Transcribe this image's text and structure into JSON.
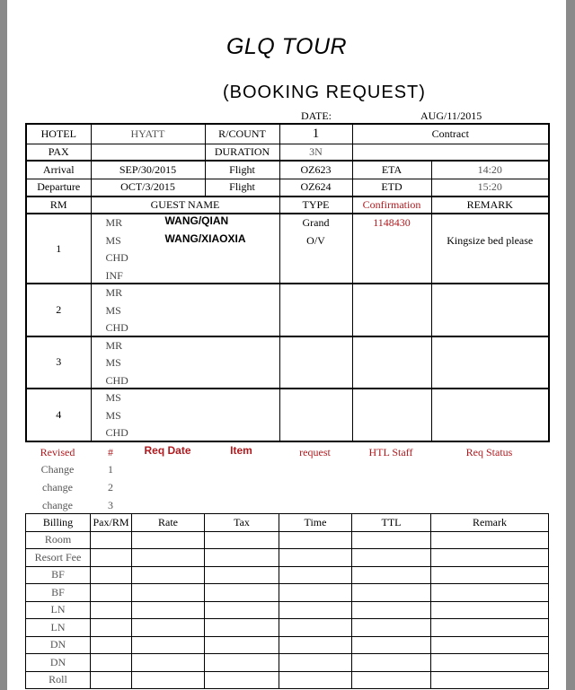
{
  "title": "GLQ TOUR",
  "subtitle": "(BOOKING REQUEST)",
  "date_label": "DATE:",
  "date_value": "AUG/11/2015",
  "info": {
    "hotel_label": "HOTEL",
    "hotel": "HYATT",
    "rcount_label": "R/COUNT",
    "rcount": "1",
    "contract": "Contract",
    "pax_label": "PAX",
    "pax": "",
    "duration_label": "DURATION",
    "duration": "3N",
    "arrival_label": "Arrival",
    "arrival": "SEP/30/2015",
    "flight_label": "Flight",
    "arr_flight": "OZ623",
    "eta_label": "ETA",
    "eta": "14:20",
    "departure_label": "Departure",
    "departure": "OCT/3/2015",
    "dep_flight": "OZ624",
    "etd_label": "ETD",
    "etd": "15:20"
  },
  "rooms_header": {
    "rm": "RM",
    "guest_name": "GUEST NAME",
    "type": "TYPE",
    "confirmation": "Confirmation",
    "remark": "REMARK"
  },
  "rooms": [
    {
      "rm": "1",
      "titles": [
        "MR",
        "MS",
        "CHD",
        "INF"
      ],
      "names": [
        "WANG/QIAN",
        "WANG/XIAOXIA"
      ],
      "type": [
        "Grand",
        "O/V"
      ],
      "confirmation": "1148430",
      "remark": "Kingsize bed please"
    },
    {
      "rm": "2",
      "titles": [
        "MR",
        "MS",
        "CHD"
      ]
    },
    {
      "rm": "3",
      "titles": [
        "MR",
        "MS",
        "CHD"
      ]
    },
    {
      "rm": "4",
      "titles": [
        "MS",
        "MS",
        "CHD"
      ]
    }
  ],
  "revisions": {
    "headers": [
      "Revised",
      "#",
      "Req Date",
      "Item",
      "request",
      "HTL Staff",
      "Req Status"
    ],
    "rows": [
      [
        "Change",
        "1"
      ],
      [
        "change",
        "2"
      ],
      [
        "change",
        "3"
      ]
    ]
  },
  "billing": {
    "headers": [
      "Billing",
      "Pax/RM",
      "Rate",
      "Tax",
      "Time",
      "TTL",
      "Remark"
    ],
    "rows": [
      "Room",
      "Resort Fee",
      "BF",
      "BF",
      "LN",
      "LN",
      "DN",
      "DN",
      "Roll"
    ]
  },
  "colors": {
    "accent_red": "#b0191e"
  }
}
